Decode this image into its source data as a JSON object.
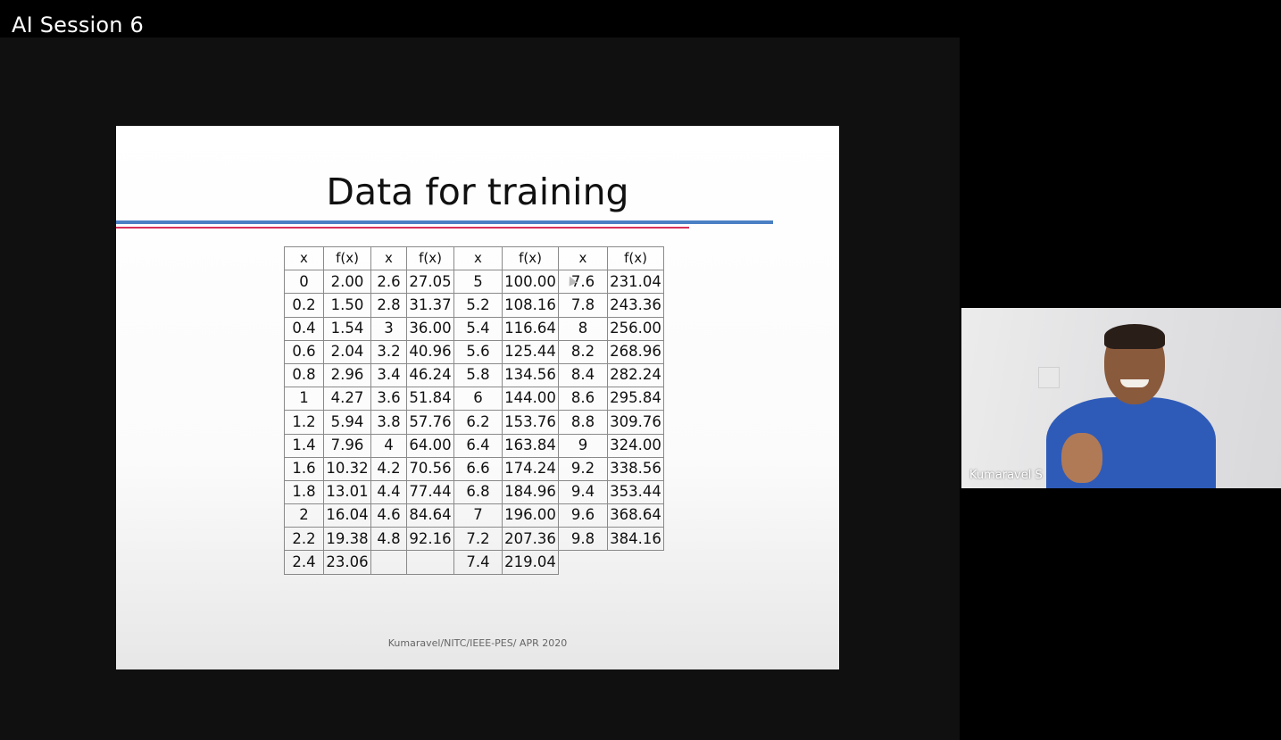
{
  "session": {
    "title": "AI Session 6"
  },
  "slide": {
    "title": "Data for training",
    "footer": "Kumaravel/NITC/IEEE-PES/ APR 2020",
    "table": {
      "headers": [
        "x",
        "f(x)",
        "x",
        "f(x)",
        "x",
        "f(x)",
        "x",
        "f(x)"
      ],
      "rows": [
        [
          "0",
          "2.00",
          "2.6",
          "27.05",
          "5",
          "100.00",
          "7.6",
          "231.04"
        ],
        [
          "0.2",
          "1.50",
          "2.8",
          "31.37",
          "5.2",
          "108.16",
          "7.8",
          "243.36"
        ],
        [
          "0.4",
          "1.54",
          "3",
          "36.00",
          "5.4",
          "116.64",
          "8",
          "256.00"
        ],
        [
          "0.6",
          "2.04",
          "3.2",
          "40.96",
          "5.6",
          "125.44",
          "8.2",
          "268.96"
        ],
        [
          "0.8",
          "2.96",
          "3.4",
          "46.24",
          "5.8",
          "134.56",
          "8.4",
          "282.24"
        ],
        [
          "1",
          "4.27",
          "3.6",
          "51.84",
          "6",
          "144.00",
          "8.6",
          "295.84"
        ],
        [
          "1.2",
          "5.94",
          "3.8",
          "57.76",
          "6.2",
          "153.76",
          "8.8",
          "309.76"
        ],
        [
          "1.4",
          "7.96",
          "4",
          "64.00",
          "6.4",
          "163.84",
          "9",
          "324.00"
        ],
        [
          "1.6",
          "10.32",
          "4.2",
          "70.56",
          "6.6",
          "174.24",
          "9.2",
          "338.56"
        ],
        [
          "1.8",
          "13.01",
          "4.4",
          "77.44",
          "6.8",
          "184.96",
          "9.4",
          "353.44"
        ],
        [
          "2",
          "16.04",
          "4.6",
          "84.64",
          "7",
          "196.00",
          "9.6",
          "368.64"
        ],
        [
          "2.2",
          "19.38",
          "4.8",
          "92.16",
          "7.2",
          "207.36",
          "9.8",
          "384.16"
        ],
        [
          "2.4",
          "23.06",
          "",
          "",
          "7.4",
          "219.04",
          "",
          ""
        ]
      ]
    },
    "colors": {
      "title_rule_blue": "#4a7fc4",
      "title_rule_red": "#d8305a"
    }
  },
  "participant": {
    "name": "Kumaravel S"
  },
  "icons": {
    "cursor": "mouse-pointer-icon"
  }
}
